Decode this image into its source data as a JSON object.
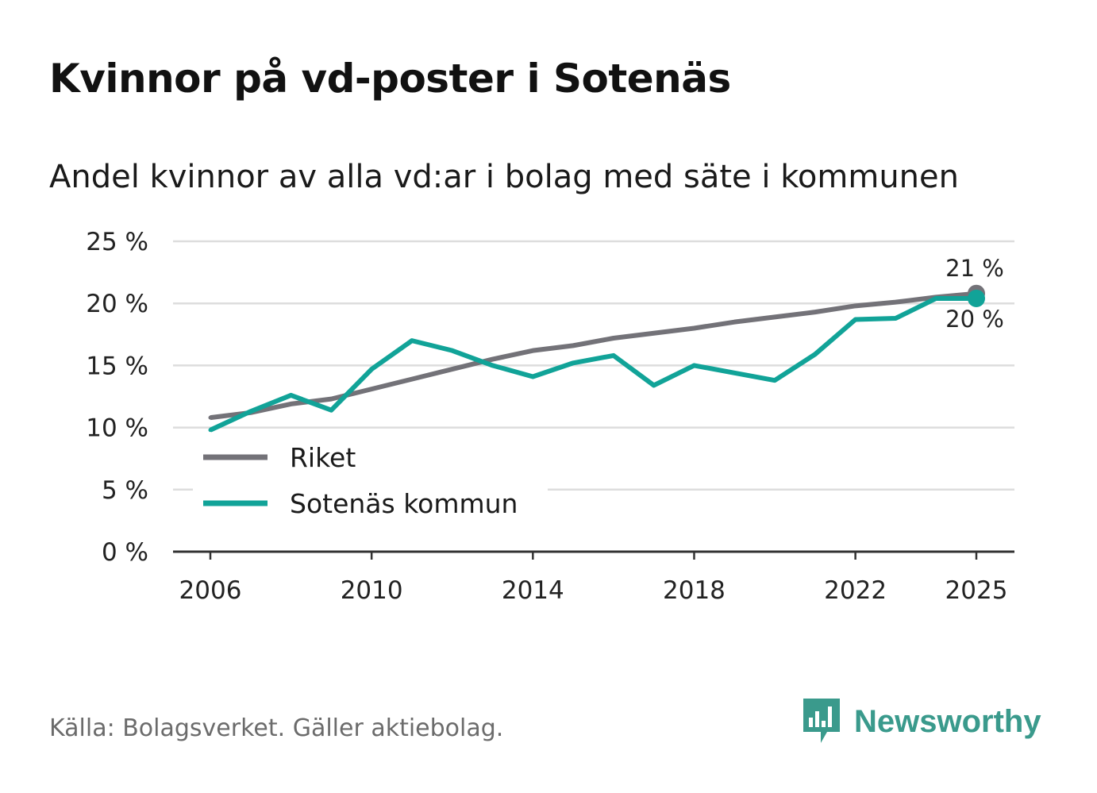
{
  "title": "Kvinnor på vd-poster i Sotenäs",
  "subtitle": "Andel kvinnor av alla vd:ar i bolag med säte i kommunen",
  "source": "Källa: Bolagsverket. Gäller aktiebolag.",
  "brand": {
    "name": "Newsworthy",
    "icon": "newsworthy-logo-icon",
    "color": "#3a9a8c"
  },
  "colors": {
    "riket": "#737278",
    "sotenas": "#11a398",
    "grid": "#dddddd",
    "axis": "#333333"
  },
  "chart_data": {
    "type": "line",
    "title": "Kvinnor på vd-poster i Sotenäs",
    "subtitle": "Andel kvinnor av alla vd:ar i bolag med säte i kommunen",
    "xlabel": "",
    "ylabel": "",
    "x": [
      2006,
      2007,
      2008,
      2009,
      2010,
      2011,
      2012,
      2013,
      2014,
      2015,
      2016,
      2017,
      2018,
      2019,
      2020,
      2021,
      2022,
      2023,
      2024,
      2025
    ],
    "xticks": [
      2006,
      2010,
      2014,
      2018,
      2022,
      2025
    ],
    "xtick_labels": [
      "2006",
      "2010",
      "2014",
      "2018",
      "2022",
      "2025"
    ],
    "ylim": [
      0,
      25
    ],
    "yticks": [
      0,
      5,
      10,
      15,
      20,
      25
    ],
    "ytick_labels": [
      "0 %",
      "5 %",
      "10 %",
      "15 %",
      "20 %",
      "25 %"
    ],
    "grid": true,
    "legend_position": "bottom-left",
    "series": [
      {
        "name": "Riket",
        "color": "#737278",
        "values": [
          10.8,
          11.2,
          11.9,
          12.3,
          13.1,
          13.9,
          14.7,
          15.5,
          16.2,
          16.6,
          17.2,
          17.6,
          18.0,
          18.5,
          18.9,
          19.3,
          19.8,
          20.1,
          20.5,
          20.8
        ],
        "end_label": "21 %"
      },
      {
        "name": "Sotenäs kommun",
        "color": "#11a398",
        "values": [
          9.8,
          11.3,
          12.6,
          11.4,
          14.7,
          17.0,
          16.2,
          15.0,
          14.1,
          15.2,
          15.8,
          13.4,
          15.0,
          14.4,
          13.8,
          15.9,
          18.7,
          18.8,
          20.4,
          20.4
        ],
        "end_label": "20 %"
      }
    ]
  }
}
